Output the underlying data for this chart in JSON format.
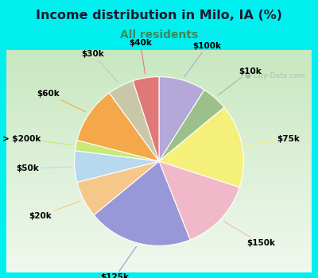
{
  "title": "Income distribution in Milo, IA (%)",
  "subtitle": "All residents",
  "background_color": "#00EFEF",
  "chart_bg_gradient_top": "#f0f8f0",
  "chart_bg_gradient_bottom": "#d8f0d8",
  "watermark": "City-Data.com",
  "labels": [
    "$100k",
    "$10k",
    "$75k",
    "$150k",
    "$125k",
    "$20k",
    "$50k",
    "> $200k",
    "$60k",
    "$30k",
    "$40k"
  ],
  "values": [
    9,
    5,
    16,
    14,
    20,
    7,
    6,
    2,
    11,
    5,
    5
  ],
  "colors": [
    "#b3a8d8",
    "#9dbf8a",
    "#f5f07a",
    "#f0b8c8",
    "#9898d8",
    "#f5c88a",
    "#b8d8f0",
    "#c8e878",
    "#f5a84a",
    "#c8c8a8",
    "#e07878"
  ],
  "line_colors": [
    "#b3a8d8",
    "#9dbf8a",
    "#f5f07a",
    "#f0b8c8",
    "#9898d8",
    "#f5c88a",
    "#b8d8f0",
    "#c8e878",
    "#f5a84a",
    "#c8c8a8",
    "#e07878"
  ],
  "title_fontsize": 11.5,
  "subtitle_fontsize": 10,
  "label_fontsize": 7.5
}
